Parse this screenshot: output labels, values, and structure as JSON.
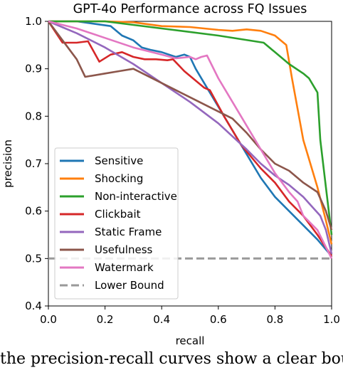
{
  "chart_data": {
    "type": "line",
    "title": "GPT-4o Performance across FQ Issues",
    "xlabel": "recall",
    "ylabel": "precision",
    "xlim": [
      0.0,
      1.0
    ],
    "ylim": [
      0.4,
      1.0
    ],
    "xticks": [
      "0.0",
      "0.2",
      "0.4",
      "0.6",
      "0.8",
      "1.0"
    ],
    "yticks": [
      "0.4",
      "0.5",
      "0.6",
      "0.7",
      "0.8",
      "0.9",
      "1.0"
    ],
    "grid": false,
    "legend_position": "lower-left",
    "series": [
      {
        "name": "Sensitive",
        "color": "#1f77b4",
        "style": "solid",
        "x": [
          0.0,
          0.1,
          0.22,
          0.26,
          0.3,
          0.33,
          0.36,
          0.4,
          0.45,
          0.48,
          0.5,
          0.52,
          0.55,
          0.6,
          0.65,
          0.7,
          0.75,
          0.8,
          0.85,
          0.9,
          0.95,
          1.0
        ],
        "y": [
          1.0,
          1.0,
          0.99,
          0.97,
          0.96,
          0.945,
          0.94,
          0.935,
          0.925,
          0.93,
          0.925,
          0.9,
          0.87,
          0.82,
          0.77,
          0.72,
          0.67,
          0.63,
          0.6,
          0.57,
          0.54,
          0.505
        ]
      },
      {
        "name": "Shocking",
        "color": "#ff7f0e",
        "style": "solid",
        "x": [
          0.0,
          0.2,
          0.3,
          0.4,
          0.5,
          0.55,
          0.6,
          0.65,
          0.7,
          0.75,
          0.8,
          0.84,
          0.86,
          0.9,
          0.95,
          0.98,
          1.0
        ],
        "y": [
          1.0,
          1.0,
          0.998,
          0.99,
          0.988,
          0.985,
          0.982,
          0.98,
          0.983,
          0.98,
          0.97,
          0.95,
          0.88,
          0.75,
          0.65,
          0.58,
          0.53
        ]
      },
      {
        "name": "Non-interactive",
        "color": "#2ca02c",
        "style": "solid",
        "x": [
          0.0,
          0.2,
          0.4,
          0.6,
          0.76,
          0.8,
          0.85,
          0.9,
          0.92,
          0.94,
          0.95,
          0.96,
          0.98,
          1.0
        ],
        "y": [
          1.0,
          1.0,
          0.985,
          0.97,
          0.955,
          0.935,
          0.91,
          0.89,
          0.88,
          0.86,
          0.85,
          0.75,
          0.65,
          0.55
        ]
      },
      {
        "name": "Clickbait",
        "color": "#d62728",
        "style": "solid",
        "x": [
          0.0,
          0.05,
          0.1,
          0.14,
          0.18,
          0.22,
          0.26,
          0.3,
          0.34,
          0.38,
          0.42,
          0.44,
          0.48,
          0.55,
          0.57,
          0.62,
          0.68,
          0.75,
          0.8,
          0.85,
          0.9,
          0.95,
          1.0
        ],
        "y": [
          1.0,
          0.955,
          0.955,
          0.958,
          0.915,
          0.93,
          0.935,
          0.925,
          0.92,
          0.92,
          0.918,
          0.92,
          0.895,
          0.86,
          0.855,
          0.8,
          0.74,
          0.69,
          0.66,
          0.62,
          0.59,
          0.55,
          0.505
        ]
      },
      {
        "name": "Static Frame",
        "color": "#9467bd",
        "style": "solid",
        "x": [
          0.0,
          0.1,
          0.2,
          0.3,
          0.4,
          0.5,
          0.6,
          0.7,
          0.75,
          0.8,
          0.85,
          0.88,
          0.9,
          0.93,
          0.96,
          0.98,
          1.0
        ],
        "y": [
          1.0,
          0.975,
          0.945,
          0.91,
          0.87,
          0.83,
          0.785,
          0.73,
          0.7,
          0.675,
          0.655,
          0.64,
          0.63,
          0.61,
          0.59,
          0.56,
          0.51
        ]
      },
      {
        "name": "Usefulness",
        "color": "#8c564b",
        "style": "solid",
        "x": [
          0.0,
          0.05,
          0.1,
          0.13,
          0.2,
          0.25,
          0.3,
          0.35,
          0.4,
          0.45,
          0.5,
          0.55,
          0.6,
          0.65,
          0.7,
          0.75,
          0.8,
          0.85,
          0.88,
          0.9,
          0.95,
          0.98,
          1.0
        ],
        "y": [
          1.0,
          0.96,
          0.92,
          0.883,
          0.89,
          0.895,
          0.9,
          0.885,
          0.87,
          0.855,
          0.84,
          0.825,
          0.81,
          0.795,
          0.765,
          0.73,
          0.7,
          0.685,
          0.67,
          0.66,
          0.64,
          0.6,
          0.56
        ]
      },
      {
        "name": "Watermark",
        "color": "#e377c2",
        "style": "solid",
        "x": [
          0.0,
          0.1,
          0.2,
          0.3,
          0.4,
          0.45,
          0.5,
          0.52,
          0.54,
          0.56,
          0.6,
          0.65,
          0.7,
          0.75,
          0.8,
          0.85,
          0.88,
          0.9,
          0.95,
          1.0
        ],
        "y": [
          1.0,
          0.985,
          0.965,
          0.945,
          0.93,
          0.922,
          0.925,
          0.92,
          0.925,
          0.928,
          0.88,
          0.83,
          0.78,
          0.73,
          0.68,
          0.64,
          0.62,
          0.59,
          0.56,
          0.5
        ]
      },
      {
        "name": "Lower Bound",
        "color": "#999999",
        "style": "dashed",
        "x": [
          0.0,
          1.0
        ],
        "y": [
          0.5,
          0.5
        ]
      }
    ]
  },
  "caption": "the precision-recall curves show a clear boundary between"
}
